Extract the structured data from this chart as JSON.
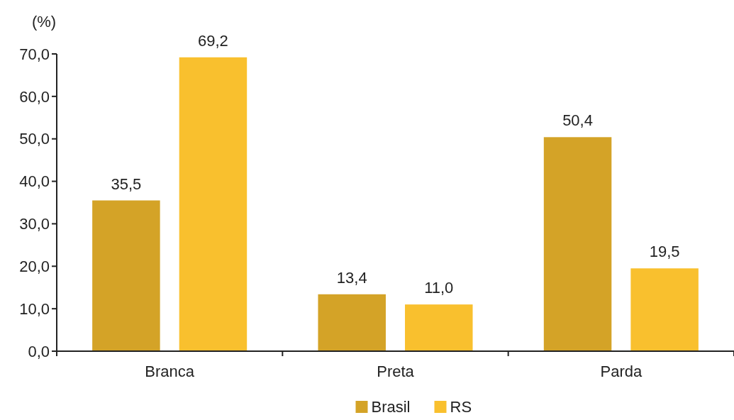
{
  "chart_data": {
    "type": "bar",
    "ylabel": "(%)",
    "categories": [
      "Branca",
      "Preta",
      "Parda"
    ],
    "series": [
      {
        "name": "Brasil",
        "color": "#d4a327",
        "values": [
          35.5,
          13.4,
          50.4
        ],
        "value_labels": [
          "35,5",
          "13,4",
          "50,4"
        ]
      },
      {
        "name": "RS",
        "color": "#f9c02e",
        "values": [
          69.2,
          11.0,
          19.5
        ],
        "value_labels": [
          "69,2",
          "11,0",
          "19,5"
        ]
      }
    ],
    "ylim": [
      0,
      70
    ],
    "yticks": [
      {
        "value": 0,
        "label": "0,0"
      },
      {
        "value": 10,
        "label": "10,0"
      },
      {
        "value": 20,
        "label": "20,0"
      },
      {
        "value": 30,
        "label": "30,0"
      },
      {
        "value": 40,
        "label": "40,0"
      },
      {
        "value": 50,
        "label": "50,0"
      },
      {
        "value": 60,
        "label": "60,0"
      },
      {
        "value": 70,
        "label": "70,0"
      }
    ],
    "grid": false,
    "legend": "bottom"
  }
}
